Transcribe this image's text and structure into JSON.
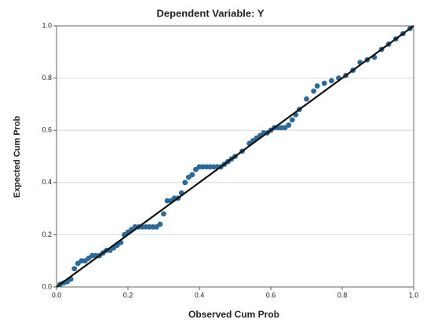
{
  "chart_data": {
    "type": "scatter",
    "title": "Dependent Variable: Y",
    "x_label": "Observed Cum Prob",
    "y_label": "Expected Cum Prob",
    "color": "#2b6a98",
    "line_color": "#111111",
    "grid": true,
    "xlim": [
      0,
      1
    ],
    "ylim": [
      0,
      1
    ],
    "xticks": [
      {
        "value": 0,
        "label": "0.0"
      },
      0.2,
      0.4,
      0.6,
      0.8,
      {
        "value": 1,
        "label": "1.0"
      }
    ],
    "yticks": [
      {
        "value": 0,
        "label": "0.0"
      },
      0.2,
      0.4,
      0.6,
      0.8,
      {
        "value": 1,
        "label": "1.0"
      }
    ],
    "x": [
      0.01,
      0.02,
      0.03,
      0.04,
      0.05,
      0.06,
      0.07,
      0.08,
      0.09,
      0.1,
      0.11,
      0.12,
      0.13,
      0.14,
      0.15,
      0.16,
      0.17,
      0.18,
      0.19,
      0.2,
      0.21,
      0.22,
      0.23,
      0.24,
      0.25,
      0.26,
      0.27,
      0.28,
      0.29,
      0.3,
      0.31,
      0.32,
      0.33,
      0.34,
      0.35,
      0.36,
      0.37,
      0.38,
      0.39,
      0.4,
      0.41,
      0.42,
      0.43,
      0.44,
      0.45,
      0.46,
      0.47,
      0.48,
      0.49,
      0.5,
      0.52,
      0.54,
      0.55,
      0.56,
      0.57,
      0.58,
      0.59,
      0.6,
      0.61,
      0.62,
      0.63,
      0.64,
      0.65,
      0.66,
      0.67,
      0.68,
      0.7,
      0.72,
      0.73,
      0.75,
      0.77,
      0.79,
      0.81,
      0.83,
      0.85,
      0.87,
      0.89,
      0.91,
      0.93,
      0.95,
      0.97,
      0.99
    ],
    "values": [
      0.01,
      0.015,
      0.02,
      0.03,
      0.07,
      0.09,
      0.1,
      0.1,
      0.11,
      0.12,
      0.12,
      0.12,
      0.13,
      0.14,
      0.14,
      0.15,
      0.16,
      0.17,
      0.2,
      0.21,
      0.22,
      0.23,
      0.23,
      0.23,
      0.23,
      0.23,
      0.23,
      0.23,
      0.24,
      0.28,
      0.33,
      0.33,
      0.34,
      0.34,
      0.36,
      0.4,
      0.42,
      0.43,
      0.45,
      0.46,
      0.46,
      0.46,
      0.46,
      0.46,
      0.46,
      0.46,
      0.47,
      0.48,
      0.49,
      0.5,
      0.52,
      0.55,
      0.56,
      0.57,
      0.58,
      0.59,
      0.59,
      0.6,
      0.61,
      0.61,
      0.61,
      0.61,
      0.62,
      0.64,
      0.66,
      0.68,
      0.72,
      0.75,
      0.77,
      0.78,
      0.79,
      0.8,
      0.81,
      0.83,
      0.86,
      0.87,
      0.88,
      0.91,
      0.93,
      0.95,
      0.97,
      0.99
    ]
  }
}
